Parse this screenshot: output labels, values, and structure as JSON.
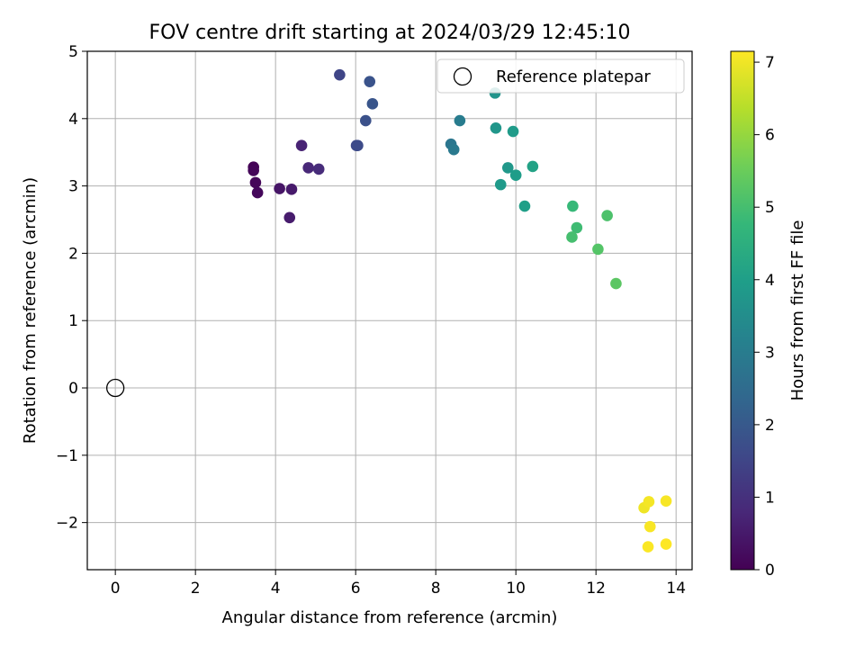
{
  "chart_data": {
    "type": "scatter",
    "title": "FOV centre drift starting at 2024/03/29 12:45:10",
    "xlabel": "Angular distance from reference (arcmin)",
    "ylabel": "Rotation from reference (arcmin)",
    "xlim": [
      -0.7,
      14.4
    ],
    "ylim": [
      -2.7,
      5.0
    ],
    "xticks": [
      0,
      2,
      4,
      6,
      8,
      10,
      12,
      14
    ],
    "yticks": [
      -2,
      -1,
      0,
      1,
      2,
      3,
      4,
      5
    ],
    "xtick_labels": [
      "0",
      "2",
      "4",
      "6",
      "8",
      "10",
      "12",
      "14"
    ],
    "ytick_labels": [
      "−2",
      "−1",
      "0",
      "1",
      "2",
      "3",
      "4",
      "5"
    ],
    "grid": true,
    "legend": {
      "placement": "top-right",
      "entries": [
        "Reference platepar"
      ]
    },
    "reference": {
      "x": 0,
      "y": 0,
      "marker": "open-circle"
    },
    "colorbar": {
      "label": "Hours from first FF file",
      "range": [
        0,
        7.15
      ],
      "ticks": [
        0,
        1,
        2,
        3,
        4,
        5,
        6,
        7
      ],
      "tick_labels": [
        "0",
        "1",
        "2",
        "3",
        "4",
        "5",
        "6",
        "7"
      ],
      "colormap": [
        "#440154",
        "#482878",
        "#3e4989",
        "#31688e",
        "#26828e",
        "#1f9e89",
        "#35b779",
        "#6ece58",
        "#b5de2b",
        "#fde725"
      ]
    },
    "points": [
      {
        "x": 3.45,
        "y": 3.28,
        "c": 0.05
      },
      {
        "x": 3.45,
        "y": 3.23,
        "c": 0.08
      },
      {
        "x": 3.5,
        "y": 3.05,
        "c": 0.12
      },
      {
        "x": 3.55,
        "y": 2.9,
        "c": 0.15
      },
      {
        "x": 4.1,
        "y": 2.96,
        "c": 0.4
      },
      {
        "x": 4.4,
        "y": 2.95,
        "c": 0.5
      },
      {
        "x": 4.35,
        "y": 2.53,
        "c": 0.55
      },
      {
        "x": 4.65,
        "y": 3.6,
        "c": 0.7
      },
      {
        "x": 4.82,
        "y": 3.27,
        "c": 0.8
      },
      {
        "x": 5.08,
        "y": 3.25,
        "c": 0.9
      },
      {
        "x": 5.6,
        "y": 4.65,
        "c": 1.5
      },
      {
        "x": 6.02,
        "y": 3.6,
        "c": 1.6
      },
      {
        "x": 6.05,
        "y": 3.6,
        "c": 1.65
      },
      {
        "x": 6.25,
        "y": 3.97,
        "c": 1.8
      },
      {
        "x": 6.35,
        "y": 4.55,
        "c": 1.85
      },
      {
        "x": 6.42,
        "y": 4.22,
        "c": 1.9
      },
      {
        "x": 8.38,
        "y": 3.62,
        "c": 2.8
      },
      {
        "x": 8.45,
        "y": 3.54,
        "c": 2.9
      },
      {
        "x": 8.6,
        "y": 3.97,
        "c": 3.0
      },
      {
        "x": 9.48,
        "y": 4.38,
        "c": 3.7
      },
      {
        "x": 9.5,
        "y": 3.86,
        "c": 3.75
      },
      {
        "x": 9.62,
        "y": 3.02,
        "c": 3.85
      },
      {
        "x": 9.8,
        "y": 3.27,
        "c": 3.8
      },
      {
        "x": 9.93,
        "y": 3.81,
        "c": 3.9
      },
      {
        "x": 10.0,
        "y": 3.16,
        "c": 3.95
      },
      {
        "x": 10.22,
        "y": 2.7,
        "c": 4.0
      },
      {
        "x": 10.42,
        "y": 3.29,
        "c": 4.1
      },
      {
        "x": 11.42,
        "y": 2.7,
        "c": 4.8
      },
      {
        "x": 11.52,
        "y": 2.38,
        "c": 4.9
      },
      {
        "x": 11.4,
        "y": 2.24,
        "c": 5.0
      },
      {
        "x": 12.05,
        "y": 2.06,
        "c": 5.2
      },
      {
        "x": 12.28,
        "y": 2.56,
        "c": 5.1
      },
      {
        "x": 12.5,
        "y": 1.55,
        "c": 5.3
      },
      {
        "x": 13.2,
        "y": -1.78,
        "c": 7.0
      },
      {
        "x": 13.32,
        "y": -1.69,
        "c": 7.05
      },
      {
        "x": 13.75,
        "y": -1.68,
        "c": 7.08
      },
      {
        "x": 13.35,
        "y": -2.06,
        "c": 7.1
      },
      {
        "x": 13.3,
        "y": -2.36,
        "c": 7.12
      },
      {
        "x": 13.75,
        "y": -2.32,
        "c": 7.15
      }
    ]
  }
}
